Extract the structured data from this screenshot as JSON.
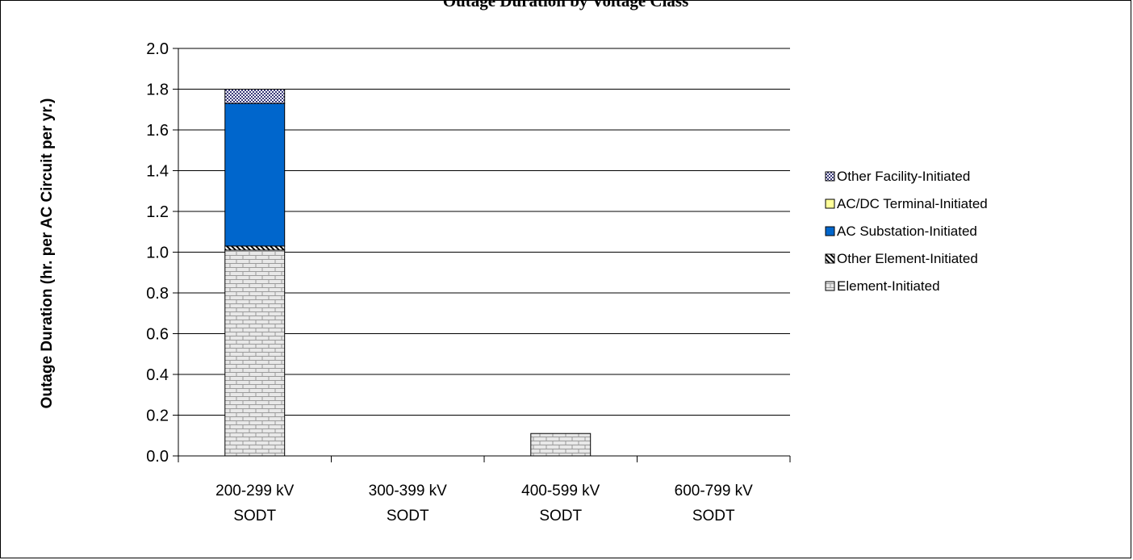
{
  "chart_data": {
    "type": "bar",
    "stacked": true,
    "title": "Outage Duration by Voltage Class",
    "ylabel": "Outage Duration (hr. per AC Circuit per yr.)",
    "xlabel": "",
    "ylim": [
      0,
      2.0
    ],
    "yticks": [
      "0.0",
      "0.2",
      "0.4",
      "0.6",
      "0.8",
      "1.0",
      "1.2",
      "1.4",
      "1.6",
      "1.8",
      "2.0"
    ],
    "grid": true,
    "legend_position": "right",
    "categories": [
      [
        "200-299 kV",
        "SODT"
      ],
      [
        "300-399 kV",
        "SODT"
      ],
      [
        "400-599 kV",
        "SODT"
      ],
      [
        "600-799 kV",
        "SODT"
      ]
    ],
    "series": [
      {
        "name": "Element-Initiated",
        "values": [
          1.01,
          0,
          0.11,
          0
        ],
        "color": "#e8e8e8",
        "pattern": "brick"
      },
      {
        "name": "Other Element-Initiated",
        "values": [
          0.02,
          0,
          0,
          0
        ],
        "color": "#ffffff",
        "pattern": "diagonal"
      },
      {
        "name": "AC Substation-Initiated",
        "values": [
          0.7,
          0,
          0,
          0
        ],
        "color": "#0066cc",
        "pattern": "solid"
      },
      {
        "name": "AC/DC Terminal-Initiated",
        "values": [
          0,
          0,
          0,
          0
        ],
        "color": "#ffff99",
        "pattern": "solid"
      },
      {
        "name": "Other Facility-Initiated",
        "values": [
          0.07,
          0,
          0,
          0
        ],
        "color": "#ffffff",
        "pattern": "dots"
      }
    ],
    "legend_order": [
      "Other Facility-Initiated",
      "AC/DC Terminal-Initiated",
      "AC Substation-Initiated",
      "Other Element-Initiated",
      "Element-Initiated"
    ]
  }
}
